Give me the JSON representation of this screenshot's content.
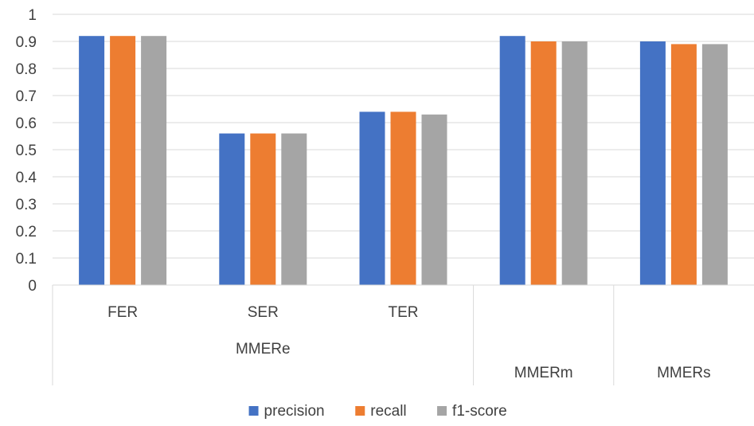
{
  "chart_data": {
    "type": "bar",
    "title": "",
    "xlabel": "",
    "ylabel": "",
    "ylim": [
      0,
      1
    ],
    "yticks": [
      "0",
      "0.1",
      "0.2",
      "0.3",
      "0.4",
      "0.5",
      "0.6",
      "0.7",
      "0.8",
      "0.9",
      "1"
    ],
    "grid": true,
    "legend_position": "bottom-center",
    "categories": [
      "FER",
      "SER",
      "TER",
      "MMERm",
      "MMERs"
    ],
    "groups": [
      {
        "label": "MMERe",
        "categories": [
          "FER",
          "SER",
          "TER"
        ]
      },
      {
        "label": "",
        "categories": [
          "MMERm"
        ]
      },
      {
        "label": "",
        "categories": [
          "MMERs"
        ]
      }
    ],
    "series": [
      {
        "name": "precision",
        "color": "#4472C4",
        "values": [
          0.92,
          0.56,
          0.64,
          0.92,
          0.9
        ]
      },
      {
        "name": "recall",
        "color": "#ED7D31",
        "values": [
          0.92,
          0.56,
          0.64,
          0.9,
          0.89
        ]
      },
      {
        "name": "f1-score",
        "color": "#A5A5A5",
        "values": [
          0.92,
          0.56,
          0.63,
          0.9,
          0.89
        ]
      }
    ]
  }
}
